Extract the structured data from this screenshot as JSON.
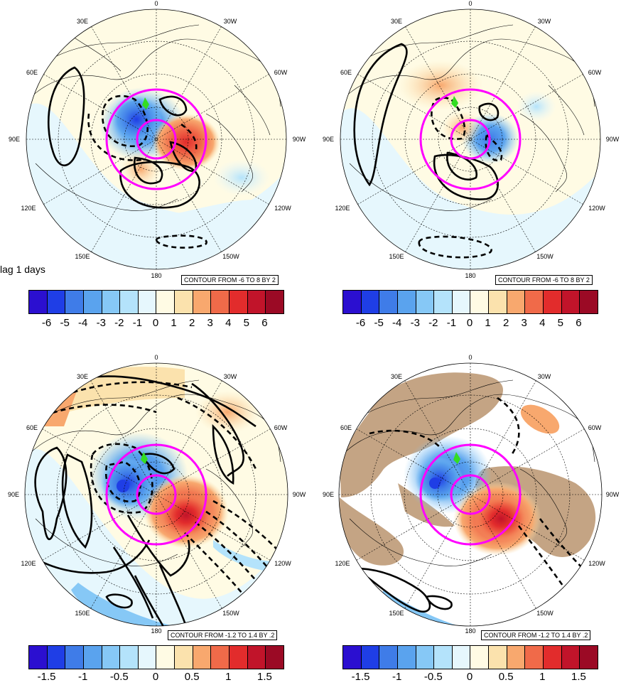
{
  "lag_label": "lag 1 days",
  "contour_text": {
    "top": "CONTOUR FROM -6 TO 8 BY 2",
    "bottom": "CONTOUR FROM -1.2 TO 1.4 BY .2"
  },
  "longitude_labels": {
    "top": "0",
    "top_left": "30E",
    "top_right": "30W",
    "upper_left": "60E",
    "upper_right": "60W",
    "left": "90E",
    "right": "90W",
    "lower_left": "120E",
    "lower_right": "120W",
    "bottom_left": "150E",
    "bottom_right": "150W",
    "bottom": "180"
  },
  "colorbar_colors": [
    "#2b0fd0",
    "#1f3ee6",
    "#3f7ce8",
    "#5aa3ee",
    "#86c8f6",
    "#b4e3fb",
    "#e6f7fd",
    "#fffbe4",
    "#fbe2ad",
    "#f8a86e",
    "#f06a49",
    "#e22c2c",
    "#c1142a",
    "#9b0a25"
  ],
  "colorbar_ticks": {
    "top": [
      "-6",
      "-5",
      "-4",
      "-3",
      "-2",
      "-1",
      "0",
      "1",
      "2",
      "3",
      "4",
      "5",
      "6"
    ],
    "bottom": [
      "-1.5",
      "-1",
      "-0.5",
      "0",
      "0.5",
      "1",
      "1.5"
    ]
  },
  "colors": {
    "magenta_ring": "#ff00ff",
    "land_tan": "#c4a484",
    "marker_green": "#33dd22",
    "contour": "#000000"
  }
}
